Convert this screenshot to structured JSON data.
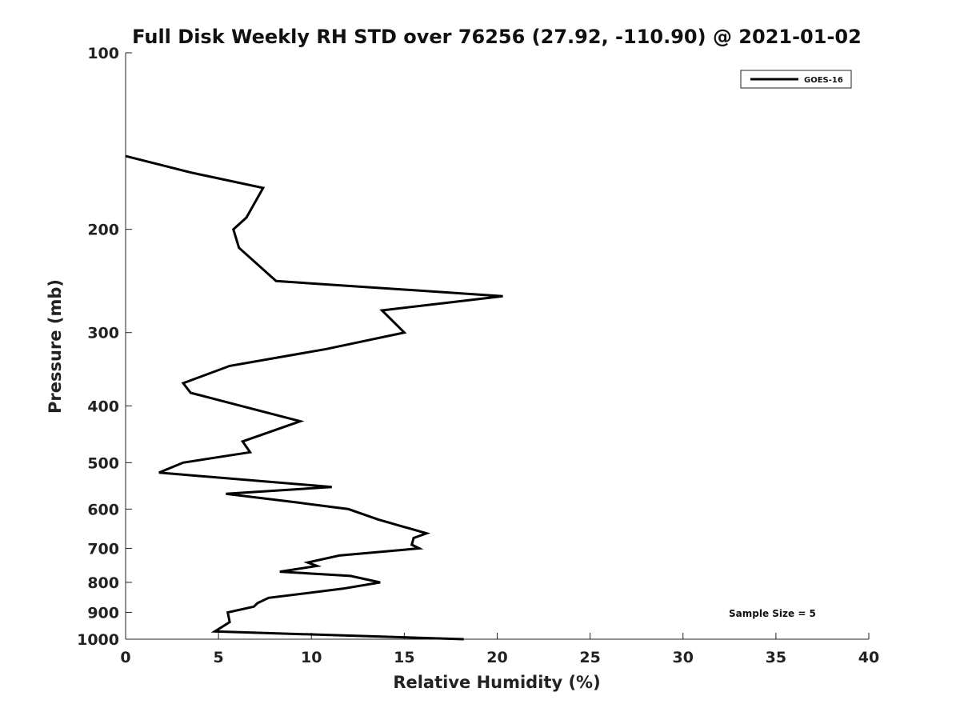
{
  "chart_data": {
    "type": "line",
    "title": "Full Disk Weekly RH STD over 76256 (27.92, -110.90) @ 2021-01-02",
    "xlabel": "Relative Humidity (%)",
    "ylabel": "Pressure (mb)",
    "xlim": [
      0,
      40
    ],
    "ylim": [
      100,
      1000
    ],
    "y_scale": "log",
    "y_inverted": true,
    "x_ticks": [
      0,
      5,
      10,
      15,
      20,
      25,
      30,
      35,
      40
    ],
    "y_ticks": [
      100,
      200,
      300,
      400,
      500,
      600,
      700,
      800,
      900,
      1000
    ],
    "grid": false,
    "legend_position": "top-right",
    "series": [
      {
        "name": "GOES-16",
        "color": "#000000",
        "x": [
          0.0,
          3.5,
          7.4,
          6.5,
          5.8,
          6.1,
          8.1,
          20.3,
          13.8,
          15.0,
          10.8,
          5.6,
          3.1,
          3.5,
          6.2,
          9.4,
          6.3,
          6.7,
          3.1,
          1.8,
          11.1,
          5.4,
          9.3,
          12.0,
          13.6,
          16.2,
          15.5,
          15.4,
          15.8,
          11.5,
          9.8,
          10.3,
          8.3,
          12.1,
          13.7,
          11.7,
          7.7,
          7.1,
          6.9,
          5.5,
          5.6,
          4.8,
          18.2
        ],
        "y": [
          150,
          160,
          170,
          191,
          200,
          215,
          245,
          260,
          275,
          300,
          320,
          342,
          366,
          380,
          400,
          425,
          460,
          480,
          500,
          520,
          550,
          565,
          585,
          600,
          625,
          660,
          672,
          690,
          700,
          720,
          740,
          750,
          767,
          780,
          800,
          820,
          850,
          868,
          880,
          900,
          935,
          970,
          1000
        ]
      }
    ],
    "annotations": [
      "Sample Size = 5"
    ]
  }
}
